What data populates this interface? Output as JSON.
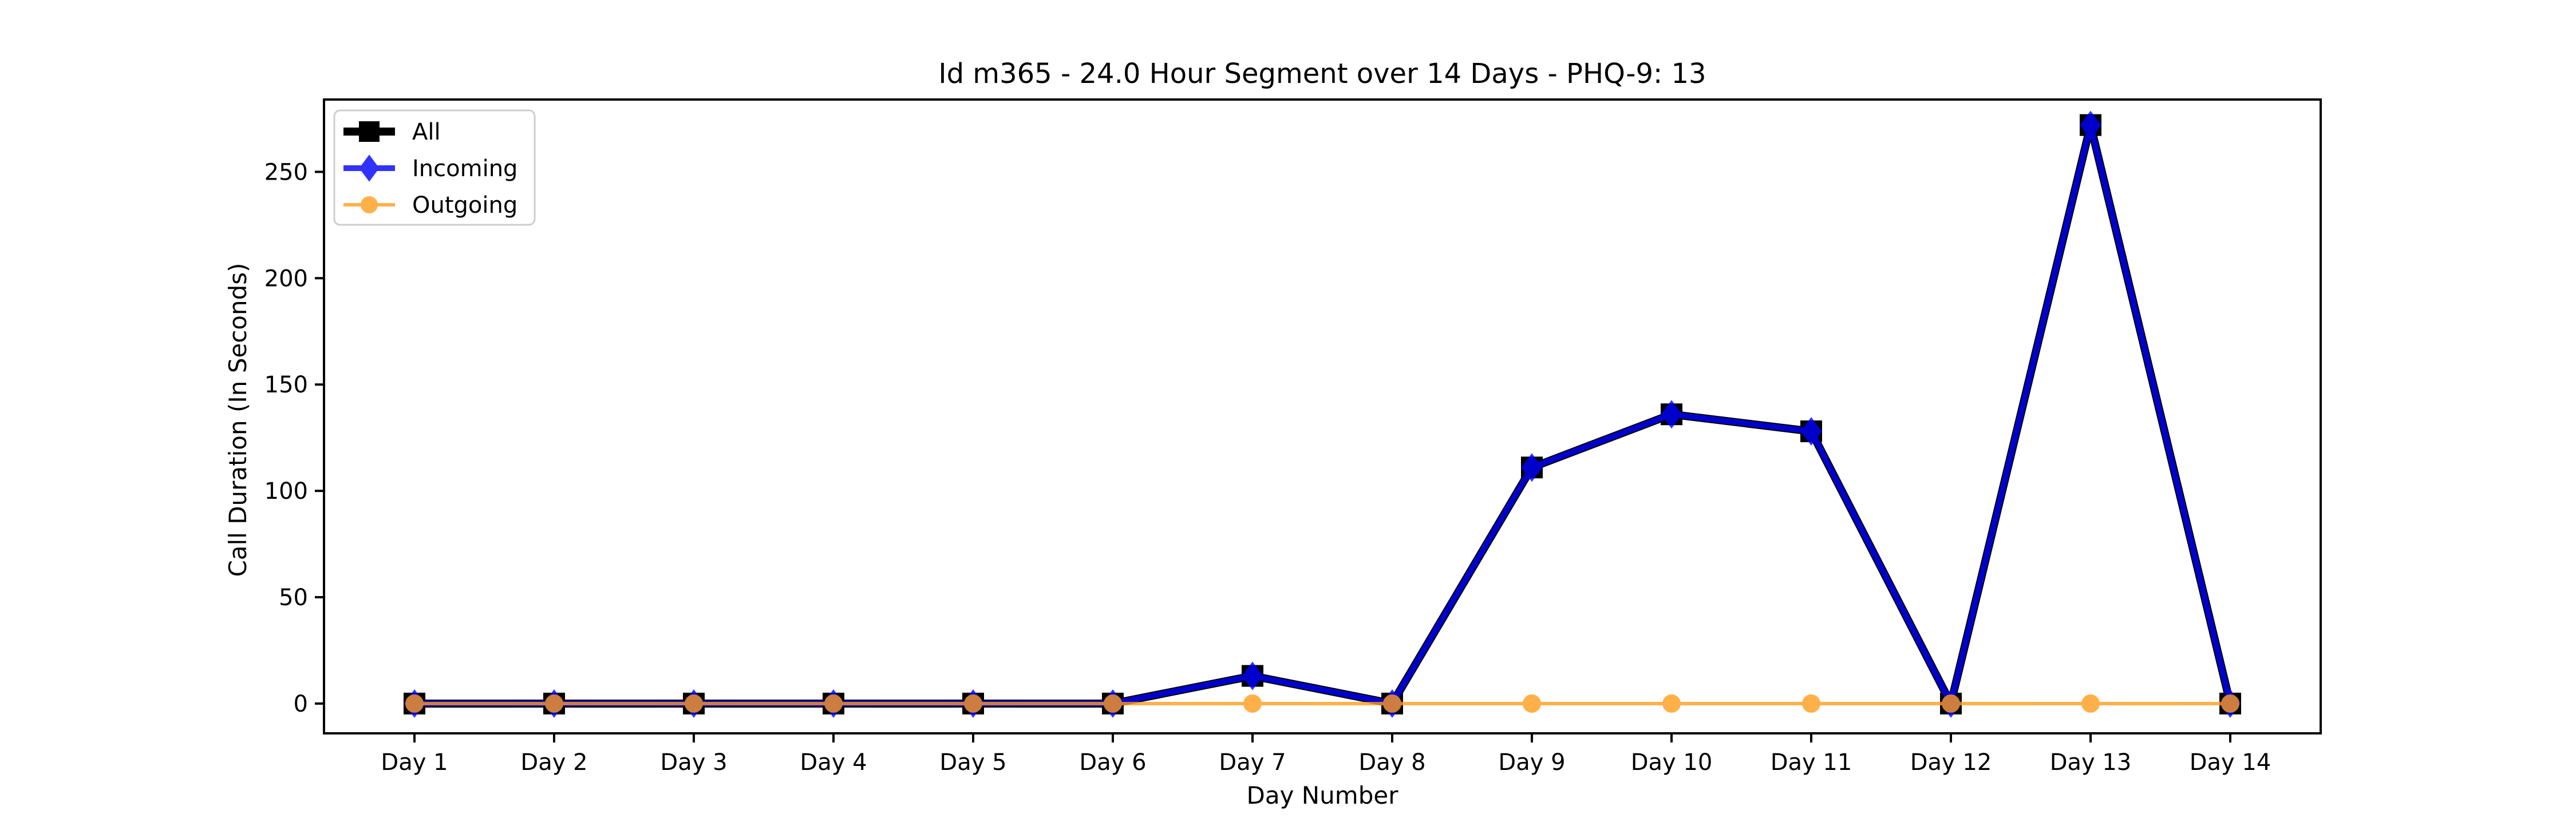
{
  "chart_data": {
    "type": "line",
    "title": "Id m365 - 24.0 Hour Segment over 14 Days - PHQ-9: 13",
    "xlabel": "Day Number",
    "ylabel": "Call Duration (In Seconds)",
    "categories": [
      "Day 1",
      "Day 2",
      "Day 3",
      "Day 4",
      "Day 5",
      "Day 6",
      "Day 7",
      "Day 8",
      "Day 9",
      "Day 10",
      "Day 11",
      "Day 12",
      "Day 13",
      "Day 14"
    ],
    "ylim": [
      -14,
      284
    ],
    "yticks": [
      0,
      50,
      100,
      150,
      200,
      250
    ],
    "grid": false,
    "legend_position": "top-left",
    "series": [
      {
        "name": "All",
        "color": "#000000",
        "marker": "square",
        "values": [
          0,
          0,
          0,
          0,
          0,
          0,
          13,
          0,
          111,
          136,
          128,
          0,
          272,
          0
        ]
      },
      {
        "name": "Incoming",
        "color": "#0000ff",
        "marker": "diamond",
        "values": [
          0,
          0,
          0,
          0,
          0,
          0,
          13,
          0,
          111,
          136,
          128,
          0,
          272,
          0
        ]
      },
      {
        "name": "Outgoing",
        "color": "#ff9d1c",
        "marker": "circle",
        "values": [
          0,
          0,
          0,
          0,
          0,
          0,
          0,
          0,
          0,
          0,
          0,
          0,
          0,
          0
        ]
      }
    ]
  }
}
